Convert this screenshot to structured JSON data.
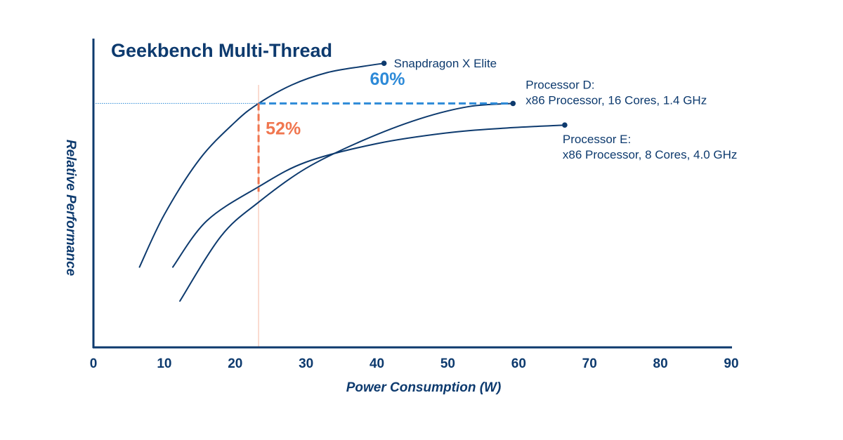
{
  "chart_data": {
    "type": "line",
    "title": "Geekbench Multi-Thread",
    "xlabel": "Power Consumption (W)",
    "ylabel": "Relative Performance",
    "xlim": [
      0,
      90
    ],
    "ylim": [
      0,
      100
    ],
    "x_ticks": [
      0,
      10,
      20,
      30,
      40,
      50,
      60,
      70,
      80,
      90
    ],
    "grid": false,
    "series": [
      {
        "name": "Snapdragon X Elite",
        "label_lines": [
          "Snapdragon X Elite"
        ],
        "color": "#0d3a6e",
        "x": [
          6.5,
          10,
          15,
          20,
          23.3,
          28,
          33,
          38,
          41
        ],
        "y": [
          26,
          43,
          61,
          73,
          79,
          85,
          89,
          91,
          92
        ]
      },
      {
        "name": "Processor D",
        "label_lines": [
          "Processor D:",
          "x86 Processor, 16 Cores, 1.4 GHz"
        ],
        "color": "#0d3a6e",
        "x": [
          12.2,
          18,
          23.3,
          30,
          38,
          46,
          53,
          59.2
        ],
        "y": [
          15,
          36,
          47,
          58,
          67,
          74,
          78,
          79
        ]
      },
      {
        "name": "Processor E",
        "label_lines": [
          "Processor E:",
          "x86 Processor, 8 Cores, 4.0 GHz"
        ],
        "color": "#0d3a6e",
        "x": [
          11.2,
          16,
          23.3,
          30,
          40,
          50,
          58,
          66.5
        ],
        "y": [
          26,
          41,
          52,
          60,
          66,
          69.5,
          71,
          72
        ]
      }
    ],
    "reference_x": 23.3,
    "reference_y": 79,
    "annotations": [
      {
        "text": "60%",
        "color": "#2d8ad8",
        "x": 39,
        "y": 85
      },
      {
        "text": "52%",
        "color": "#f0764f",
        "x": 24.3,
        "y": 69
      }
    ],
    "colors": {
      "axis": "#0d3a6e",
      "reference_x_line": "#f8c8b8",
      "reference_y_line": "#2d8ad8",
      "performance_gap": "#f0764f",
      "power_gap": "#2d8ad8"
    }
  }
}
